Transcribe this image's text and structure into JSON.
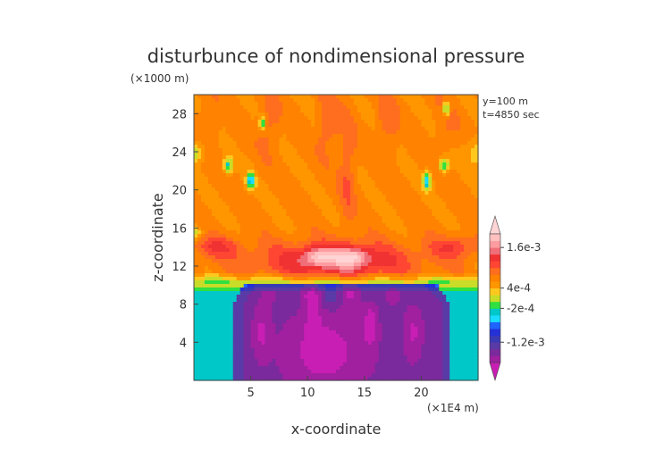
{
  "chart_data": {
    "type": "heatmap",
    "title": "disturbunce of nondimensional pressure",
    "z_unit": "(×1000 m)",
    "x_unit": "(×1E4 m)",
    "xlabel": "x-coordinate",
    "ylabel": "z-coordinate",
    "info_lines": [
      "y=100 m",
      "t=4850 sec"
    ],
    "xlim": [
      0,
      25
    ],
    "ylim": [
      0,
      30
    ],
    "x_ticks": [
      5,
      10,
      15,
      20
    ],
    "y_ticks": [
      4,
      8,
      12,
      16,
      20,
      24,
      28
    ],
    "colorbar_labels": [
      {
        "value": 0.0016,
        "text": "1.6e-3"
      },
      {
        "value": 0.0004,
        "text": "4e-4"
      },
      {
        "value": -0.0002,
        "text": "-2e-4"
      },
      {
        "value": -0.0012,
        "text": "-1.2e-3"
      }
    ],
    "levels": [
      -0.0018,
      -0.0016,
      -0.0014,
      -0.0012,
      -0.001,
      -0.0008,
      -0.0006,
      -0.0004,
      -0.0002,
      0.0,
      0.0002,
      0.0004,
      0.0006,
      0.0008,
      0.001,
      0.0012,
      0.0014,
      0.0016,
      0.0018,
      0.002
    ],
    "colors": [
      "#c81eb4",
      "#a020a0",
      "#7a2a9c",
      "#5a3aa6",
      "#3a3ab4",
      "#2430d8",
      "#1e64ff",
      "#19dcff",
      "#00c8c8",
      "#30e040",
      "#c8dc28",
      "#ffc81e",
      "#ff9600",
      "#ff8200",
      "#ff6e1e",
      "#ff4632",
      "#f03232",
      "#f06e78",
      "#ff9ca0",
      "#ffc0c0",
      "#ffd4d4"
    ],
    "grid": false
  }
}
